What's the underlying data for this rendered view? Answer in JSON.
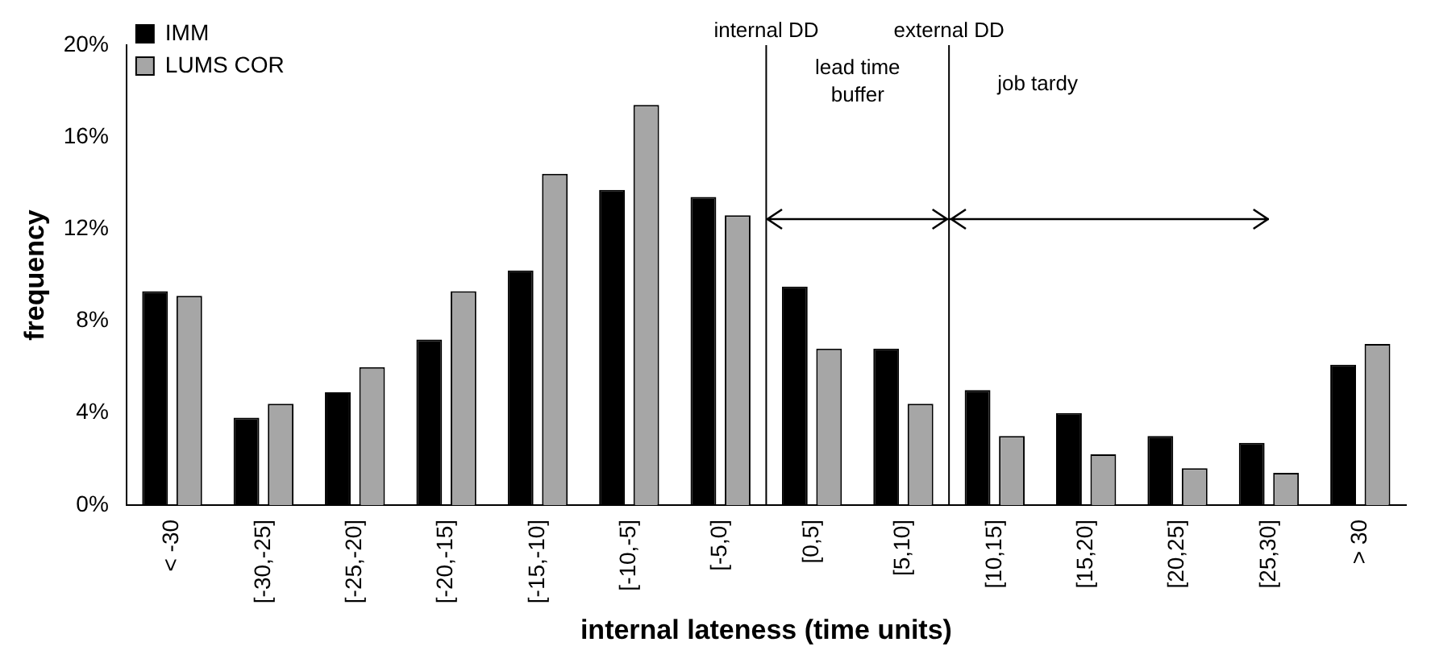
{
  "chart_data": {
    "type": "bar",
    "xlabel": "internal lateness (time units)",
    "ylabel": "frequency",
    "categories": [
      "< -30",
      "[-30,-25]",
      "[-25,-20]",
      "[-20,-15]",
      "[-15,-10]",
      "[-10,-5]",
      "[-5,0]",
      "[0,5]",
      "[5,10]",
      "[10,15]",
      "[15,20]",
      "[20,25]",
      "[25,30]",
      "> 30"
    ],
    "series": [
      {
        "name": "IMM",
        "color": "#000000",
        "values": [
          9.3,
          3.8,
          4.9,
          7.2,
          10.2,
          13.7,
          13.4,
          9.5,
          6.8,
          5.0,
          4.0,
          3.0,
          2.7,
          6.1
        ]
      },
      {
        "name": "LUMS COR",
        "color": "#a6a6a6",
        "values": [
          9.1,
          4.4,
          6.0,
          9.3,
          14.4,
          17.4,
          12.6,
          6.8,
          4.4,
          3.0,
          2.2,
          1.6,
          1.4,
          7.0
        ]
      }
    ],
    "ylim": [
      0,
      20
    ],
    "yticks": [
      {
        "value": 0,
        "label": "0%"
      },
      {
        "value": 4,
        "label": "4%"
      },
      {
        "value": 8,
        "label": "8%"
      },
      {
        "value": 12,
        "label": "12%"
      },
      {
        "value": 16,
        "label": "16%"
      },
      {
        "value": 20,
        "label": "20%"
      }
    ],
    "grid": false,
    "legend": "top left",
    "annotations": [
      "internal DD",
      "external DD",
      "lead time buffer",
      "job tardy"
    ]
  }
}
